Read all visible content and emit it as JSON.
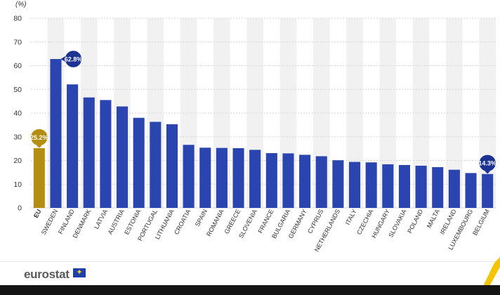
{
  "chart_data": {
    "type": "bar",
    "unit_label": "(%)",
    "ylim": [
      0,
      80
    ],
    "yticks": [
      0,
      10,
      20,
      30,
      40,
      50,
      60,
      70,
      80
    ],
    "grid": true,
    "categories": [
      "EU",
      "SWEDEN",
      "FINLAND",
      "DENMARK",
      "LATVIA",
      "AUSTRIA",
      "ESTONIA",
      "PORTUGAL",
      "LITHUANIA",
      "CROATIA",
      "SPAIN",
      "ROMANIA",
      "GREECE",
      "SLOVENIA",
      "FRANCE",
      "BULGARIA",
      "GERMANY",
      "CYPRUS",
      "NETHERLANDS",
      "ITALY",
      "CZECHIA",
      "HUNGARY",
      "SLOVAKIA",
      "POLAND",
      "MALTA",
      "IRELAND",
      "LUXEMBOURG",
      "BELGIUM"
    ],
    "values": [
      25.2,
      62.8,
      52.1,
      46.6,
      45.5,
      42.8,
      38.0,
      36.3,
      35.3,
      26.6,
      25.4,
      25.3,
      25.2,
      24.5,
      23.1,
      23.0,
      22.4,
      21.8,
      20.1,
      19.4,
      19.2,
      18.4,
      18.1,
      17.8,
      17.2,
      16.1,
      14.7,
      14.3
    ],
    "callouts": [
      {
        "index": 0,
        "text": "25.2%"
      },
      {
        "index": 1,
        "text": "62.8%"
      },
      {
        "index": 27,
        "text": "14.3%"
      }
    ],
    "colors": {
      "eu_bar": "#b38e12",
      "country_bar": "#2b45b0",
      "callout_country": "#1d3394",
      "stripe_bg": "#f1f1f1",
      "grid": "#d6d6d6",
      "stripe_accent": "#f5c400"
    }
  },
  "footer": {
    "logo_text": "eurostat",
    "flag_icon": "eu-flag-icon",
    "flag_stars": "✦"
  }
}
